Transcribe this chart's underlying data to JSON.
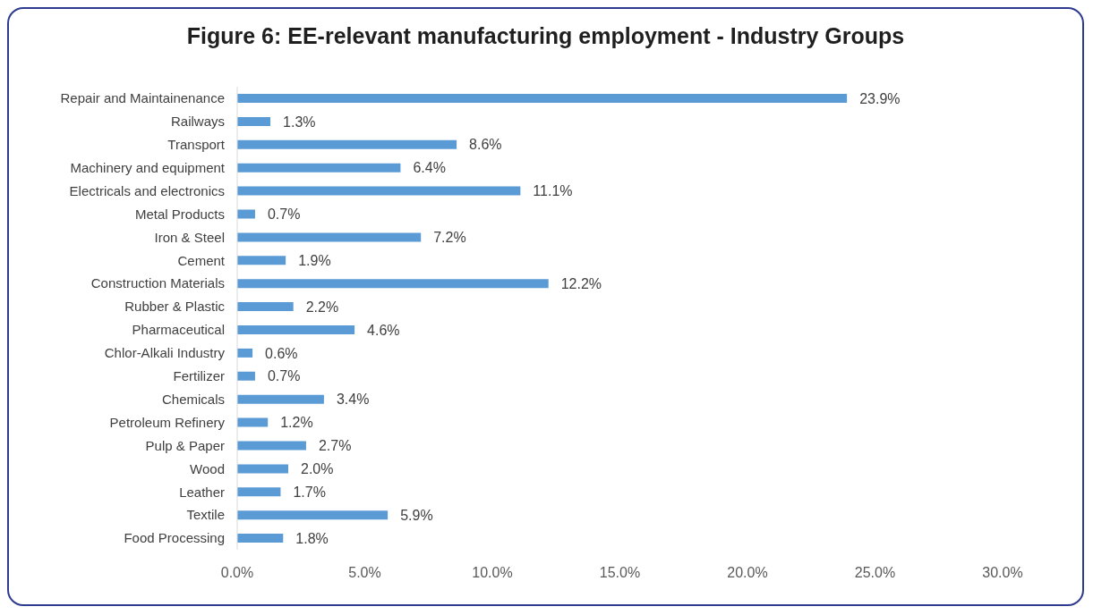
{
  "chart_data": {
    "type": "bar",
    "orientation": "horizontal",
    "title": "Figure 6: EE-relevant manufacturing employment - Industry Groups",
    "categories": [
      "Repair and Maintainenance",
      "Railways",
      "Transport",
      "Machinery and equipment",
      "Electricals and electronics",
      "Metal Products",
      "Iron & Steel",
      "Cement",
      "Construction Materials",
      "Rubber & Plastic",
      "Pharmaceutical",
      "Chlor-Alkali Industry",
      "Fertilizer",
      "Chemicals",
      "Petroleum Refinery",
      "Pulp & Paper",
      "Wood",
      "Leather",
      "Textile",
      "Food Processing"
    ],
    "values": [
      23.9,
      1.3,
      8.6,
      6.4,
      11.1,
      0.7,
      7.2,
      1.9,
      12.2,
      2.2,
      4.6,
      0.6,
      0.7,
      3.4,
      1.2,
      2.7,
      2.0,
      1.7,
      5.9,
      1.8
    ],
    "value_labels": [
      "23.9%",
      "1.3%",
      "8.6%",
      "6.4%",
      "11.1%",
      "0.7%",
      "7.2%",
      "1.9%",
      "12.2%",
      "2.2%",
      "4.6%",
      "0.6%",
      "0.7%",
      "3.4%",
      "1.2%",
      "2.7%",
      "2.0%",
      "1.7%",
      "5.9%",
      "1.8%"
    ],
    "color": "#5b9bd5",
    "xlim": [
      0,
      30
    ],
    "xticks": [
      {
        "value": 0,
        "label": "0.0%"
      },
      {
        "value": 5,
        "label": "5.0%"
      },
      {
        "value": 10,
        "label": "10.0%"
      },
      {
        "value": 15,
        "label": "15.0%"
      },
      {
        "value": 20,
        "label": "20.0%"
      },
      {
        "value": 25,
        "label": "25.0%"
      },
      {
        "value": 30,
        "label": "30.0%"
      }
    ],
    "grid": false,
    "legend": false
  }
}
